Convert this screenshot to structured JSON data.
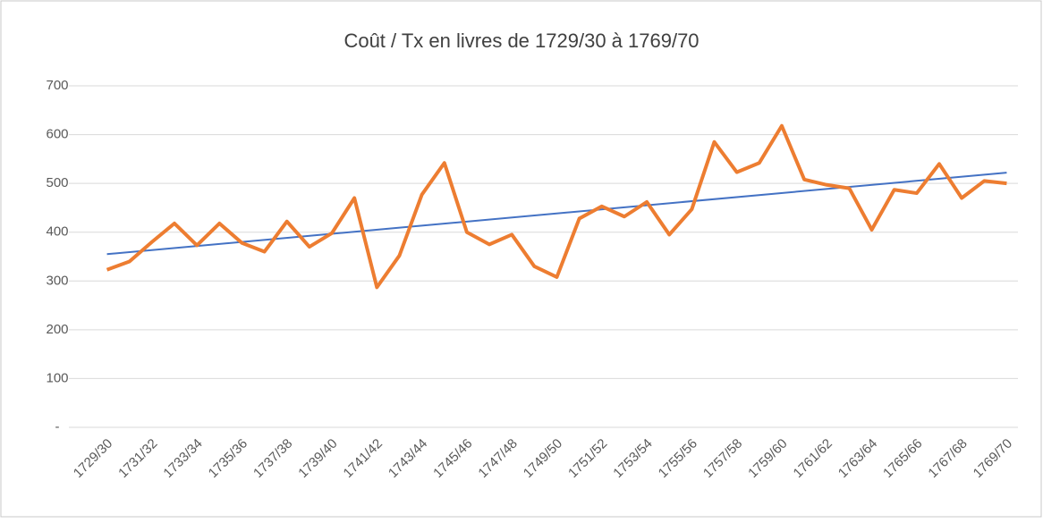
{
  "chart_data": {
    "type": "line",
    "title": "Coût / Tx en livres de 1729/30 à 1769/70",
    "categories": [
      "1729/30",
      null,
      "1731/32",
      null,
      "1733/34",
      null,
      "1735/36",
      null,
      "1737/38",
      null,
      "1739/40",
      null,
      "1741/42",
      null,
      "1743/44",
      null,
      "1745/46",
      null,
      "1747/48",
      null,
      "1749/50",
      null,
      "1751/52",
      null,
      "1753/54",
      null,
      "1755/56",
      null,
      "1757/58",
      null,
      "1759/60",
      null,
      "1761/62",
      null,
      "1763/64",
      null,
      "1765/66",
      null,
      "1767/68",
      null,
      "1769/70"
    ],
    "series": [
      {
        "color": "#ed7d31",
        "values": [
          323,
          340,
          380,
          418,
          373,
          418,
          378,
          360,
          422,
          370,
          398,
          470,
          287,
          352,
          477,
          542,
          400,
          375,
          395,
          330,
          308,
          428,
          453,
          432,
          462,
          395,
          447,
          585,
          523,
          542,
          618,
          508,
          497,
          490,
          405,
          487,
          480,
          540,
          470,
          505,
          500
        ]
      }
    ],
    "trendline": {
      "color": "#4472c4",
      "values": [
        355,
        522
      ]
    },
    "ylim": [
      0,
      700
    ],
    "yticks": [
      {
        "value": 0,
        "label": "-"
      },
      100,
      200,
      300,
      400,
      500,
      600,
      700
    ],
    "grid": true
  }
}
